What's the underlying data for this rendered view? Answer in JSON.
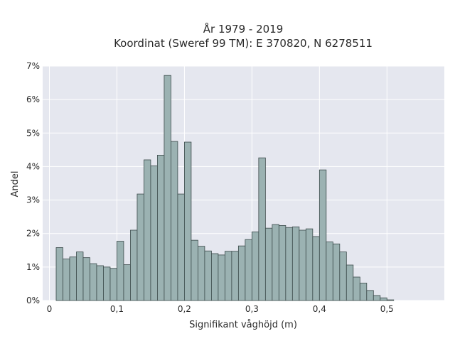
{
  "chart_data": {
    "type": "bar",
    "title_line1": "År 1979 - 2019",
    "title_line2": "Koordinat (Sweref 99 TM): E 370820, N 6278511",
    "xlabel": "Signifikant våghöjd (m)",
    "ylabel": "Andel",
    "x_ticks": [
      "0",
      "0,1",
      "0,2",
      "0,3",
      "0,4",
      "0,5"
    ],
    "x_tick_values": [
      0,
      0.1,
      0.2,
      0.3,
      0.4,
      0.5
    ],
    "y_ticks": [
      "0%",
      "1%",
      "2%",
      "3%",
      "4%",
      "5%",
      "6%",
      "7%"
    ],
    "y_tick_values": [
      0,
      1,
      2,
      3,
      4,
      5,
      6,
      7
    ],
    "xlim": [
      -0.01,
      0.585
    ],
    "ylim": [
      0,
      7
    ],
    "grid": true,
    "bin_width": 0.01,
    "bin_starts": [
      0.01,
      0.02,
      0.03,
      0.04,
      0.05,
      0.06,
      0.07,
      0.08,
      0.09,
      0.1,
      0.11,
      0.12,
      0.13,
      0.14,
      0.15,
      0.16,
      0.17,
      0.18,
      0.19,
      0.2,
      0.21,
      0.22,
      0.23,
      0.24,
      0.25,
      0.26,
      0.27,
      0.28,
      0.29,
      0.3,
      0.31,
      0.32,
      0.33,
      0.34,
      0.35,
      0.36,
      0.37,
      0.38,
      0.39,
      0.4,
      0.41,
      0.42,
      0.43,
      0.44,
      0.45,
      0.46,
      0.47,
      0.48,
      0.49,
      0.5,
      0.51,
      0.52,
      0.53,
      0.54,
      0.55
    ],
    "values": [
      1.58,
      1.24,
      1.3,
      1.45,
      1.28,
      1.1,
      1.04,
      1.0,
      0.96,
      1.77,
      1.07,
      2.1,
      3.18,
      4.2,
      4.02,
      4.34,
      6.72,
      4.75,
      3.18,
      4.73,
      1.8,
      1.62,
      1.48,
      1.4,
      1.36,
      1.47,
      1.47,
      1.63,
      1.82,
      2.05,
      4.26,
      2.16,
      2.27,
      2.24,
      2.18,
      2.2,
      2.1,
      2.14,
      1.91,
      3.9,
      1.75,
      1.69,
      1.45,
      1.06,
      0.7,
      0.52,
      0.3,
      0.15,
      0.08,
      0.02,
      0.0,
      0.0,
      0.0,
      0.0,
      0.0
    ],
    "colors": {
      "bar_fill": "#9bb2b2",
      "bar_stroke": "#3b4a4a",
      "plot_bg": "#e5e7ef",
      "grid": "#ffffff"
    }
  }
}
